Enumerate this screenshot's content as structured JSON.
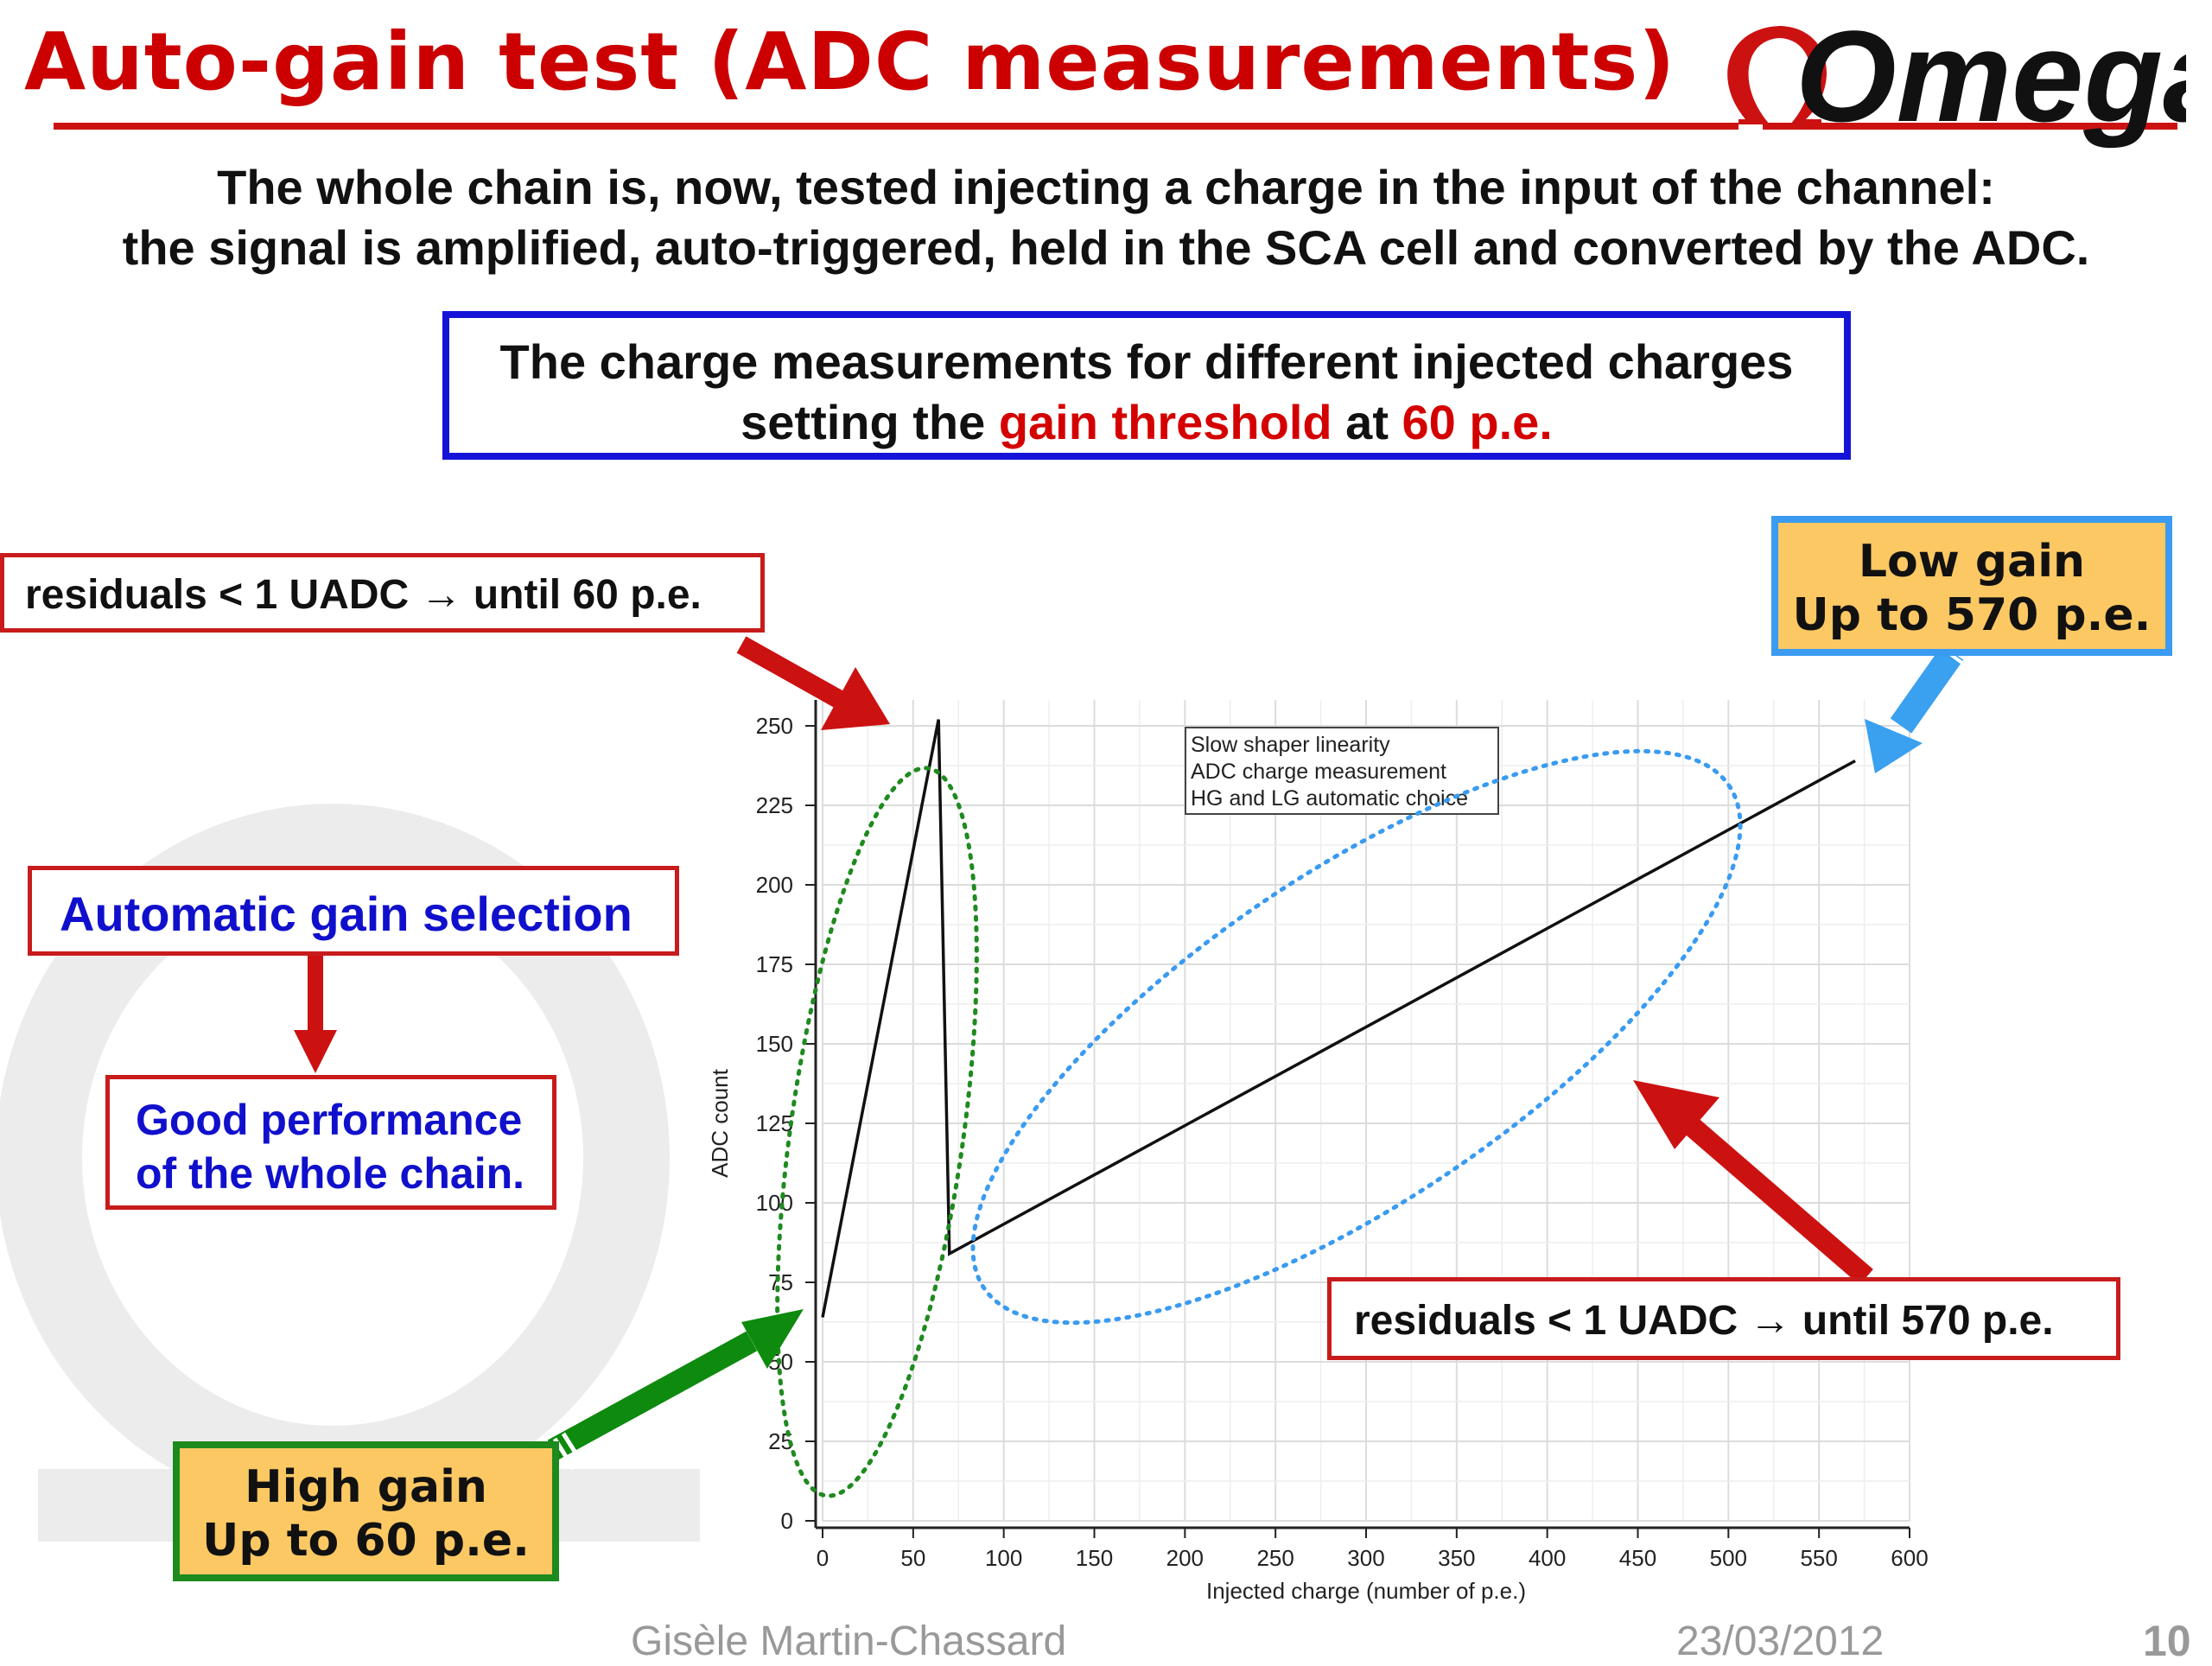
{
  "header": {
    "title": "Auto-gain test (ADC measurements)",
    "logo_text": "Omega"
  },
  "intro": {
    "line1": "The whole chain is, now, tested injecting a charge in the input of the channel:",
    "line2": "the signal is amplified, auto-triggered, held in the SCA cell and converted by the ADC."
  },
  "highlight_box": {
    "line1": "The charge measurements for different injected charges",
    "line2_prefix": "setting the ",
    "line2_red1": "gain threshold",
    "line2_mid": " at ",
    "line2_red2": "60 p.e."
  },
  "callouts": {
    "residuals_low": "residuals < 1 UADC → until 60 p.e.",
    "residuals_high": "residuals < 1 UADC → until 570 p.e.",
    "auto_gain": "Automatic gain selection",
    "good_perf_line1": "Good performance",
    "good_perf_line2": "of the whole chain.",
    "low_gain_title": "Low gain",
    "low_gain_range": "Up to 570 p.e.",
    "high_gain_title": "High gain",
    "high_gain_range": "Up to 60 p.e."
  },
  "colors": {
    "title_red": "#cc0000",
    "highlight_blue": "#1414d8",
    "callout_blue_text": "#1010cc",
    "box_fill": "#fbc863",
    "low_gain_border": "#3a9bf0",
    "high_gain_border": "#1d8a1d",
    "arrow_red": "#cc1111",
    "arrow_green": "#0e8a0e",
    "arrow_blue": "#3aa0f0"
  },
  "chart_data": {
    "type": "line",
    "xlabel": "Injected charge (number of p.e.)",
    "ylabel": "ADC count",
    "xlim": [
      0,
      600
    ],
    "ylim": [
      0,
      250
    ],
    "x_ticks": [
      0,
      50,
      100,
      150,
      200,
      250,
      300,
      350,
      400,
      450,
      500,
      550,
      600
    ],
    "y_ticks": [
      0,
      25,
      50,
      75,
      100,
      125,
      150,
      175,
      200,
      225,
      250
    ],
    "grid": true,
    "legend_lines": [
      "Slow shaper linearity",
      "ADC charge measurement",
      "HG and LG automatic choice"
    ],
    "legend_position": "top-center",
    "series": [
      {
        "x": [
          0,
          64,
          70,
          570
        ],
        "y": [
          64,
          252,
          84,
          239
        ]
      }
    ]
  },
  "footer": {
    "author": "Gisèle Martin-Chassard",
    "date": "23/03/2012",
    "page": "10"
  }
}
